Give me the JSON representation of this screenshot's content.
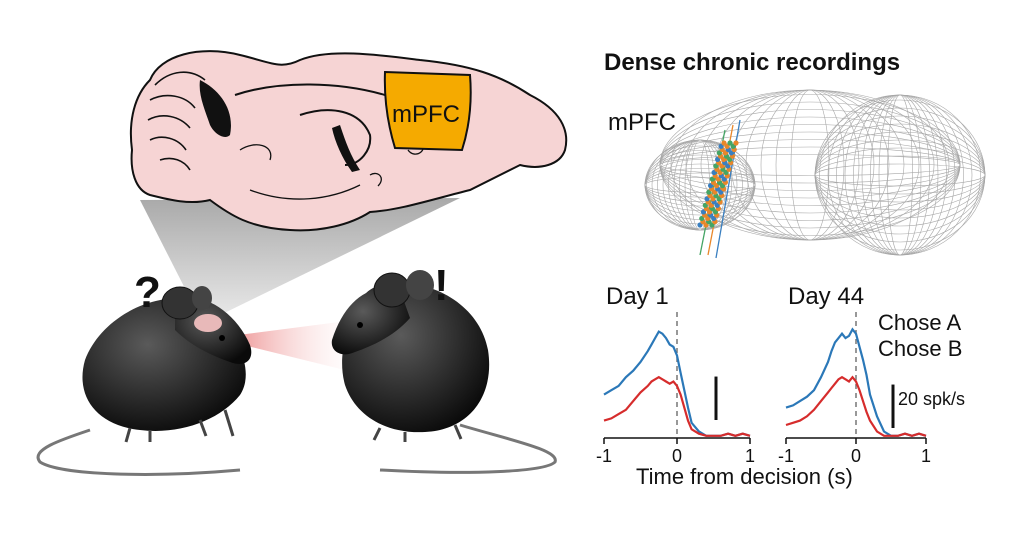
{
  "colors": {
    "brain_fill": "#f6d4d4",
    "mpfc_fill": "#f5aa00",
    "chose_a": "#2b78b8",
    "chose_b": "#d62c2c",
    "mesh": "#8a8a8a",
    "probe_orange": "#e8872a",
    "probe_green": "#45a565",
    "probe_blue": "#3a7fc0"
  },
  "labels": {
    "title": "Dense chronic recordings",
    "mpfc_region": "mPFC",
    "mpfc_mesh": "mPFC",
    "question_mark": "?",
    "exclamation_mark": "!",
    "x_axis_label": "Time from decision (s)",
    "scale_bar_label": "20 spk/s"
  },
  "icons": {
    "left_mouse": "mouse-icon",
    "right_mouse": "mouse-icon",
    "brain": "brain-sagittal-icon",
    "mesh_brain": "wireframe-brain-icon"
  },
  "chart_data": [
    {
      "type": "line",
      "title": "Day 1",
      "xlabel": "Time from decision (s)",
      "ylabel": "",
      "xlim": [
        -1,
        1
      ],
      "ylim": [
        0,
        58
      ],
      "x_ticks": [
        "-1",
        "0",
        "1"
      ],
      "decision_line_x": 0,
      "series": [
        {
          "name": "Chose A",
          "color": "#2b78b8",
          "x": [
            -1.0,
            -0.9,
            -0.8,
            -0.7,
            -0.6,
            -0.5,
            -0.4,
            -0.35,
            -0.3,
            -0.25,
            -0.2,
            -0.15,
            -0.1,
            -0.05,
            0.0,
            0.05,
            0.1,
            0.15,
            0.2,
            0.3,
            0.4,
            0.5,
            0.6,
            0.7,
            0.8,
            0.9,
            1.0
          ],
          "y": [
            20,
            22,
            24,
            28,
            31,
            35,
            40,
            43,
            46,
            49,
            48,
            46,
            43,
            42,
            38,
            30,
            22,
            14,
            7,
            3,
            1,
            1,
            1,
            2,
            1,
            2,
            1
          ]
        },
        {
          "name": "Chose B",
          "color": "#d62c2c",
          "x": [
            -1.0,
            -0.9,
            -0.8,
            -0.7,
            -0.6,
            -0.5,
            -0.4,
            -0.35,
            -0.3,
            -0.25,
            -0.2,
            -0.15,
            -0.1,
            -0.05,
            0.0,
            0.05,
            0.1,
            0.15,
            0.2,
            0.3,
            0.4,
            0.5,
            0.6,
            0.7,
            0.8,
            0.9,
            1.0
          ],
          "y": [
            8,
            9,
            11,
            13,
            17,
            21,
            24,
            26,
            27,
            28,
            27,
            26,
            25,
            26,
            24,
            20,
            14,
            8,
            4,
            2,
            1,
            1,
            1,
            2,
            1,
            2,
            1
          ]
        }
      ]
    },
    {
      "type": "line",
      "title": "Day 44",
      "xlabel": "Time from decision (s)",
      "ylabel": "",
      "xlim": [
        -1,
        1
      ],
      "ylim": [
        0,
        58
      ],
      "x_ticks": [
        "-1",
        "0",
        "1"
      ],
      "decision_line_x": 0,
      "series": [
        {
          "name": "Chose A",
          "color": "#2b78b8",
          "x": [
            -1.0,
            -0.9,
            -0.8,
            -0.7,
            -0.6,
            -0.5,
            -0.4,
            -0.35,
            -0.3,
            -0.25,
            -0.2,
            -0.15,
            -0.1,
            -0.05,
            0.0,
            0.05,
            0.1,
            0.15,
            0.2,
            0.3,
            0.4,
            0.5,
            0.6,
            0.7,
            0.8,
            0.9,
            1.0
          ],
          "y": [
            14,
            15,
            17,
            19,
            22,
            28,
            35,
            40,
            44,
            46,
            48,
            46,
            47,
            50,
            48,
            42,
            36,
            29,
            20,
            10,
            3,
            1,
            1,
            2,
            1,
            2,
            1
          ]
        },
        {
          "name": "Chose B",
          "color": "#d62c2c",
          "x": [
            -1.0,
            -0.9,
            -0.8,
            -0.7,
            -0.6,
            -0.5,
            -0.4,
            -0.35,
            -0.3,
            -0.25,
            -0.2,
            -0.15,
            -0.1,
            -0.05,
            0.0,
            0.05,
            0.1,
            0.15,
            0.2,
            0.3,
            0.4,
            0.5,
            0.6,
            0.7,
            0.8,
            0.9,
            1.0
          ],
          "y": [
            6,
            7,
            8,
            10,
            13,
            17,
            21,
            23,
            25,
            27,
            28,
            27,
            26,
            28,
            26,
            22,
            17,
            12,
            8,
            3,
            1,
            1,
            1,
            2,
            1,
            2,
            1
          ]
        }
      ],
      "scale_bar": {
        "value": 20,
        "unit": "spk/s",
        "label": "20 spk/s"
      },
      "legend": [
        "Chose A",
        "Chose B"
      ],
      "legend_placement": "top-right"
    }
  ]
}
